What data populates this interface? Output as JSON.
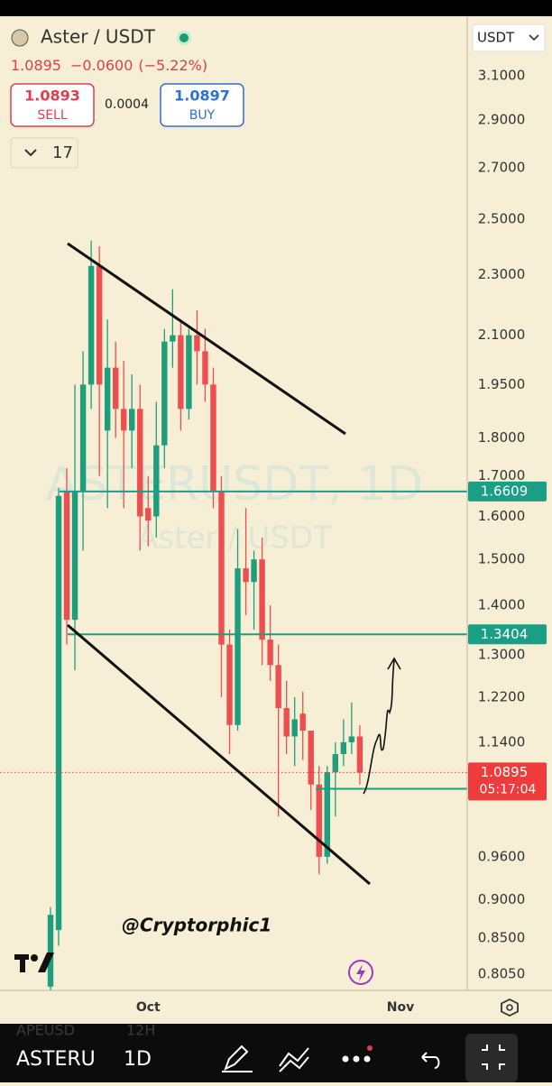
{
  "header": {
    "symbol": "Aster / USDT",
    "change": "−0.0600",
    "change_pct": "(−5.22%)",
    "sell_price": "1.0893",
    "sell_label": "SELL",
    "spread": "0.0004",
    "buy_price": "1.0897",
    "buy_label": "BUY",
    "indicator_count": "17",
    "currency": "USDT"
  },
  "chart_data": {
    "type": "candlestick",
    "watermark": "ASTERUSDT, 1D",
    "watermark_sub": "Aster / USDT",
    "annotation": "@Cryptorphic1",
    "categories": [
      null,
      null,
      null,
      null,
      null,
      null,
      null,
      null,
      null,
      null,
      null,
      null,
      "Oct",
      null,
      null,
      null,
      null,
      null,
      null,
      null,
      null,
      null,
      null,
      null,
      null,
      null,
      null,
      null,
      null,
      null,
      null,
      null,
      null,
      null,
      null,
      null,
      null,
      null,
      null,
      null,
      null,
      null,
      null,
      "Nov"
    ],
    "open": [
      0.79,
      0.86,
      1.66,
      1.37,
      1.66,
      1.95,
      2.33,
      1.82,
      2.0,
      1.88,
      1.82,
      1.88,
      1.62,
      1.6,
      1.78,
      2.08,
      2.1,
      1.88,
      2.1,
      2.05,
      1.95,
      1.66,
      1.32,
      1.17,
      1.48,
      1.45,
      1.5,
      1.33,
      1.28,
      1.2,
      1.15,
      1.19,
      1.16,
      1.07,
      0.96,
      1.09,
      1.12,
      1.14,
      1.15,
      null,
      null,
      null,
      null,
      null
    ],
    "high": [
      0.89,
      1.67,
      1.72,
      1.95,
      2.05,
      2.42,
      2.4,
      2.15,
      2.08,
      2.02,
      1.98,
      1.95,
      1.7,
      1.9,
      2.12,
      2.25,
      2.15,
      2.12,
      2.18,
      2.12,
      2.0,
      1.7,
      1.35,
      1.57,
      1.62,
      1.52,
      1.55,
      1.4,
      1.32,
      1.25,
      1.22,
      1.23,
      1.16,
      1.1,
      1.1,
      1.14,
      1.18,
      1.21,
      1.17,
      null,
      null,
      null,
      null,
      null
    ],
    "low": [
      0.78,
      0.84,
      1.32,
      1.27,
      1.52,
      1.88,
      1.7,
      1.62,
      1.8,
      1.62,
      1.72,
      1.52,
      1.53,
      1.55,
      1.72,
      2.0,
      1.82,
      1.85,
      1.95,
      1.9,
      1.62,
      1.22,
      1.12,
      1.16,
      1.38,
      1.35,
      1.28,
      1.25,
      1.02,
      1.12,
      1.1,
      1.11,
      1.03,
      0.935,
      0.95,
      1.02,
      1.1,
      1.12,
      1.07,
      null,
      null,
      null,
      null,
      null
    ],
    "close": [
      0.88,
      1.65,
      1.37,
      1.66,
      1.95,
      2.33,
      1.95,
      2.0,
      1.88,
      1.82,
      1.88,
      1.6,
      1.59,
      1.78,
      2.08,
      2.1,
      1.88,
      2.1,
      2.05,
      1.95,
      1.66,
      1.32,
      1.17,
      1.48,
      1.45,
      1.5,
      1.33,
      1.28,
      1.2,
      1.15,
      1.18,
      1.16,
      1.07,
      0.96,
      1.09,
      1.12,
      1.14,
      1.15,
      1.0895,
      null,
      null,
      null,
      null,
      null
    ],
    "up_color": "#1f9e7e",
    "down_color": "#ef4e4e",
    "log_scale": true,
    "ylim": [
      0.7856,
      3.38
    ],
    "yticks": [
      {
        "value": 3.1,
        "label": "3.1000"
      },
      {
        "value": 2.9,
        "label": "2.9000"
      },
      {
        "value": 2.7,
        "label": "2.7000"
      },
      {
        "value": 2.5,
        "label": "2.5000"
      },
      {
        "value": 2.3,
        "label": "2.3000"
      },
      {
        "value": 2.1,
        "label": "2.1000"
      },
      {
        "value": 1.95,
        "label": "1.9500"
      },
      {
        "value": 1.8,
        "label": "1.8000"
      },
      {
        "value": 1.7,
        "label": "1.7000"
      },
      {
        "value": 1.6,
        "label": "1.6000"
      },
      {
        "value": 1.5,
        "label": "1.5000"
      },
      {
        "value": 1.4,
        "label": "1.4000"
      },
      {
        "value": 1.3,
        "label": "1.3000"
      },
      {
        "value": 1.22,
        "label": "1.2200"
      },
      {
        "value": 1.14,
        "label": "1.1400"
      },
      {
        "value": 0.96,
        "label": "0.9600"
      },
      {
        "value": 0.9,
        "label": "0.9000"
      },
      {
        "value": 0.85,
        "label": "0.8500"
      },
      {
        "value": 0.805,
        "label": "0.8050"
      }
    ],
    "levels": [
      1.6609,
      1.3404,
      1.0632
    ],
    "level_color": "#1a9e85",
    "last_price": 1.0895,
    "last_price_color": "#ef3b3b",
    "countdown": "05:17:04"
  },
  "toolbar": {
    "symbol": "ASTERU",
    "interval": "1D",
    "behind_symbol": "APEUSD",
    "behind_interval": "12H"
  }
}
